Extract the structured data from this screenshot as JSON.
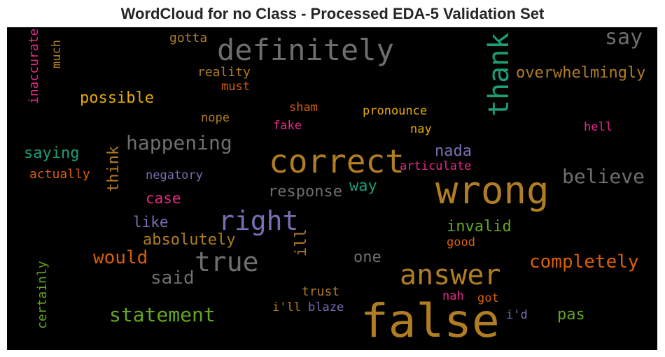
{
  "title": "WordCloud for no Class - Processed EDA-5 Validation Set",
  "colors": {
    "gold": "#b07d22",
    "gray": "#6e6e6e",
    "teal": "#1b9e77",
    "orange": "#d95f02",
    "purple": "#7570b3",
    "pink": "#e7298a",
    "green": "#66a61e",
    "yellow": "#e6ab02"
  },
  "words": [
    {
      "text": "definitely",
      "color": "gray"
    },
    {
      "text": "say",
      "color": "gray"
    },
    {
      "text": "thank",
      "color": "teal"
    },
    {
      "text": "gotta",
      "color": "gold"
    },
    {
      "text": "inaccurate",
      "color": "pink"
    },
    {
      "text": "much",
      "color": "gold"
    },
    {
      "text": "reality",
      "color": "gold"
    },
    {
      "text": "must",
      "color": "orange"
    },
    {
      "text": "overwhelmingly",
      "color": "gold"
    },
    {
      "text": "possible",
      "color": "yellow"
    },
    {
      "text": "sham",
      "color": "orange"
    },
    {
      "text": "pronounce",
      "color": "yellow"
    },
    {
      "text": "nope",
      "color": "gold"
    },
    {
      "text": "fake",
      "color": "pink"
    },
    {
      "text": "nay",
      "color": "yellow"
    },
    {
      "text": "hell",
      "color": "pink"
    },
    {
      "text": "happening",
      "color": "gray"
    },
    {
      "text": "think",
      "color": "gold"
    },
    {
      "text": "saying",
      "color": "teal"
    },
    {
      "text": "correct",
      "color": "gold"
    },
    {
      "text": "nada",
      "color": "purple"
    },
    {
      "text": "articulate",
      "color": "pink"
    },
    {
      "text": "actually",
      "color": "orange"
    },
    {
      "text": "negatory",
      "color": "purple"
    },
    {
      "text": "believe",
      "color": "gray"
    },
    {
      "text": "wrong",
      "color": "gold"
    },
    {
      "text": "case",
      "color": "pink"
    },
    {
      "text": "response",
      "color": "gray"
    },
    {
      "text": "way",
      "color": "teal"
    },
    {
      "text": "right",
      "color": "purple"
    },
    {
      "text": "like",
      "color": "purple"
    },
    {
      "text": "invalid",
      "color": "green"
    },
    {
      "text": "absolutely",
      "color": "gold"
    },
    {
      "text": "ill",
      "color": "gold"
    },
    {
      "text": "good",
      "color": "orange"
    },
    {
      "text": "would",
      "color": "orange"
    },
    {
      "text": "true",
      "color": "gray"
    },
    {
      "text": "one",
      "color": "gray"
    },
    {
      "text": "completely",
      "color": "orange"
    },
    {
      "text": "certainly",
      "color": "green"
    },
    {
      "text": "said",
      "color": "gray"
    },
    {
      "text": "answer",
      "color": "gold"
    },
    {
      "text": "trust",
      "color": "gold"
    },
    {
      "text": "nah",
      "color": "pink"
    },
    {
      "text": "got",
      "color": "orange"
    },
    {
      "text": "statement",
      "color": "green"
    },
    {
      "text": "i'll",
      "color": "gold"
    },
    {
      "text": "blaze",
      "color": "purple"
    },
    {
      "text": "false",
      "color": "gold"
    },
    {
      "text": "i'd",
      "color": "purple"
    },
    {
      "text": "pas",
      "color": "green"
    }
  ]
}
